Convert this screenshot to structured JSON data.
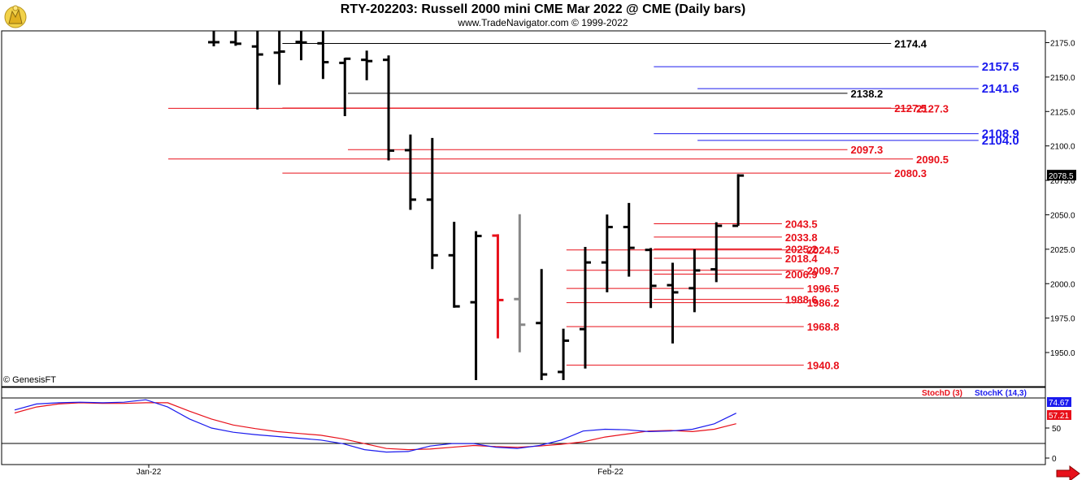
{
  "header": {
    "title": "RTY-202203:  Russell 2000 mini CME Mar 2022 @ CME  (Daily bars)",
    "subtitle": "www.TradeNavigator.com © 1999-2022"
  },
  "credit": "© GenesisFT",
  "colors": {
    "red": "#e8101a",
    "blue": "#1a1aee",
    "black": "#000000",
    "gray": "#888888",
    "stochD": "#e8101a",
    "stochK": "#1a1aee"
  },
  "chart_data": [
    {
      "type": "ohlc",
      "title": "RTY-202203:  Russell 2000 mini CME Mar 2022 @ CME  (Daily bars)",
      "ylim": [
        1930,
        2185
      ],
      "yticks": [
        1950.0,
        1975.0,
        2000.0,
        2025.0,
        2050.0,
        2075.0,
        2100.0,
        2125.0,
        2150.0,
        2175.0
      ],
      "x_labels": [
        "Jan-22",
        "Feb-22"
      ],
      "last_price": "2078.5",
      "bars": [
        {
          "open": 2175.3,
          "high": 2185,
          "low": 2172.3,
          "close": 2175.3,
          "color": "black"
        },
        {
          "open": 2175.3,
          "high": 2185,
          "low": 2172.7,
          "close": 2174.2,
          "color": "black"
        },
        {
          "open": 2172.2,
          "high": 2185,
          "low": 2126.5,
          "close": 2166.4,
          "color": "black"
        },
        {
          "open": 2167.7,
          "high": 2185,
          "low": 2144.4,
          "close": 2168.5,
          "color": "black"
        },
        {
          "open": 2175.5,
          "high": 2185,
          "low": 2162.2,
          "close": 2175.1,
          "color": "black"
        },
        {
          "open": 2174.5,
          "high": 2185,
          "low": 2148.6,
          "close": 2160.8,
          "color": "black"
        },
        {
          "open": 2160.3,
          "high": 2163.9,
          "low": 2121.6,
          "close": 2163.3,
          "color": "black"
        },
        {
          "open": 2162.5,
          "high": 2169.2,
          "low": 2147.7,
          "close": 2161.6,
          "color": "black"
        },
        {
          "open": 2162.5,
          "high": 2165.7,
          "low": 2089.5,
          "close": 2096.6,
          "color": "black"
        },
        {
          "open": 2096.9,
          "high": 2108.3,
          "low": 2053.6,
          "close": 2061.0,
          "color": "black"
        },
        {
          "open": 2061.0,
          "high": 2105.8,
          "low": 2010.6,
          "close": 2020.6,
          "color": "black"
        },
        {
          "open": 2020.6,
          "high": 2044.9,
          "low": 1982.5,
          "close": 1983.5,
          "color": "black"
        },
        {
          "open": 1986.5,
          "high": 2038.1,
          "low": 1930.0,
          "close": 2034.6,
          "color": "black"
        },
        {
          "open": 2034.9,
          "high": 2035.9,
          "low": 1960.3,
          "close": 1988.1,
          "color": "red"
        },
        {
          "open": 1988.8,
          "high": 2050.4,
          "low": 1950.2,
          "close": 1970.2,
          "color": "gray"
        },
        {
          "open": 1971.4,
          "high": 2010.6,
          "low": 1930.0,
          "close": 1934.1,
          "color": "black"
        },
        {
          "open": 1935.9,
          "high": 1967.3,
          "low": 1930.0,
          "close": 1958.6,
          "color": "black"
        },
        {
          "open": 1967.0,
          "high": 2026.7,
          "low": 1938.4,
          "close": 2015.4,
          "color": "black"
        },
        {
          "open": 2015.4,
          "high": 2050.2,
          "low": 1993.7,
          "close": 2041.1,
          "color": "black"
        },
        {
          "open": 2041.1,
          "high": 2058.6,
          "low": 2005.1,
          "close": 2026.0,
          "color": "black"
        },
        {
          "open": 2024.5,
          "high": 2025.9,
          "low": 1982.3,
          "close": 1998.4,
          "color": "black"
        },
        {
          "open": 1998.9,
          "high": 2015.2,
          "low": 1956.6,
          "close": 1993.7,
          "color": "black"
        },
        {
          "open": 1996.7,
          "high": 2024.9,
          "low": 1979.3,
          "close": 2009.6,
          "color": "black"
        },
        {
          "open": 2010.4,
          "high": 2044.6,
          "low": 2001.1,
          "close": 2042.0,
          "color": "black"
        },
        {
          "open": 2042.0,
          "high": 2079.5,
          "low": 2042.0,
          "close": 2078.5,
          "color": "black"
        }
      ],
      "levels": [
        {
          "label": "2174.4",
          "value": 2174.4,
          "color": "black",
          "start_bar": 5,
          "end_bar": 31
        },
        {
          "label": "2157.5",
          "value": 2157.5,
          "color": "blue",
          "start_bar": 22,
          "end_bar": 35
        },
        {
          "label": "2141.6",
          "value": 2141.6,
          "color": "blue",
          "start_bar": 24,
          "end_bar": 35
        },
        {
          "label": "2138.2",
          "value": 2138.2,
          "color": "black",
          "start_bar": 8,
          "end_bar": 29
        },
        {
          "label": "2127.5",
          "value": 2127.5,
          "color": "red",
          "start_bar": 5,
          "end_bar": 31
        },
        {
          "label": "2127.3",
          "value": 2127.3,
          "color": "red",
          "start_bar": 0,
          "end_bar": 32
        },
        {
          "label": "2108.9",
          "value": 2108.9,
          "color": "blue",
          "start_bar": 22,
          "end_bar": 35
        },
        {
          "label": "2104.0",
          "value": 2104.0,
          "color": "blue",
          "start_bar": 24,
          "end_bar": 35
        },
        {
          "label": "2097.3",
          "value": 2097.3,
          "color": "red",
          "start_bar": 8,
          "end_bar": 29
        },
        {
          "label": "2090.5",
          "value": 2090.5,
          "color": "red",
          "start_bar": 0,
          "end_bar": 32
        },
        {
          "label": "2080.3",
          "value": 2080.3,
          "color": "red",
          "start_bar": 5,
          "end_bar": 31
        },
        {
          "label": "2043.5",
          "value": 2043.5,
          "color": "red",
          "start_bar": 22,
          "end_bar": 26
        },
        {
          "label": "2033.8",
          "value": 2033.8,
          "color": "red",
          "start_bar": 22,
          "end_bar": 26
        },
        {
          "label": "2025.2",
          "value": 2025.2,
          "color": "red",
          "start_bar": 22,
          "end_bar": 26
        },
        {
          "label": "2024.5",
          "value": 2024.5,
          "color": "red",
          "start_bar": 18,
          "end_bar": 27
        },
        {
          "label": "2018.4",
          "value": 2018.4,
          "color": "red",
          "start_bar": 22,
          "end_bar": 26
        },
        {
          "label": "2009.7",
          "value": 2009.7,
          "color": "red",
          "start_bar": 18,
          "end_bar": 27
        },
        {
          "label": "2006.9",
          "value": 2006.9,
          "color": "red",
          "start_bar": 22,
          "end_bar": 26
        },
        {
          "label": "1996.5",
          "value": 1996.5,
          "color": "red",
          "start_bar": 18,
          "end_bar": 27
        },
        {
          "label": "1988.6",
          "value": 1988.6,
          "color": "red",
          "start_bar": 22,
          "end_bar": 26
        },
        {
          "label": "1986.2",
          "value": 1986.2,
          "color": "red",
          "start_bar": 18,
          "end_bar": 27
        },
        {
          "label": "1968.8",
          "value": 1968.8,
          "color": "red",
          "start_bar": 18,
          "end_bar": 27
        },
        {
          "label": "1940.8",
          "value": 1940.8,
          "color": "red",
          "start_bar": 18,
          "end_bar": 27
        }
      ]
    },
    {
      "type": "line",
      "title": "",
      "ylim": [
        0,
        100
      ],
      "yticks": [
        0,
        50
      ],
      "series": [
        {
          "name": "StochD (3)",
          "color": "red",
          "values": [
            75,
            85,
            90,
            92,
            91,
            91,
            92,
            92,
            78,
            65,
            55,
            49,
            44,
            41,
            38,
            32,
            24,
            16,
            14,
            15,
            18,
            21,
            19,
            18,
            20,
            23,
            27,
            35,
            40,
            45,
            46,
            44,
            48,
            57.21
          ]
        },
        {
          "name": "StochK (14,3)",
          "color": "blue",
          "values": [
            80,
            90,
            92,
            93,
            92,
            93,
            97,
            85,
            65,
            50,
            43,
            39,
            36,
            33,
            30,
            24,
            14,
            10,
            11,
            20,
            24,
            24,
            18,
            16,
            21,
            30,
            45,
            48,
            47,
            44,
            45,
            48,
            57,
            74.67
          ]
        }
      ],
      "value_labels": [
        "74.67",
        "57.21"
      ]
    }
  ]
}
